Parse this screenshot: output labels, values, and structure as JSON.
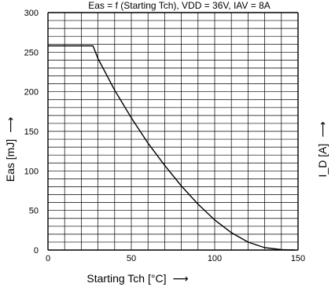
{
  "chart_data": {
    "type": "line",
    "title": "Eas = f (Starting Tch), VDD = 36V, IAV = 8A",
    "xlabel": "Starting Tch [°C]",
    "ylabel": "Eas [mJ]",
    "y2label": "I_D [A]",
    "arrow_glyph": "⟶",
    "xlim": [
      0,
      150
    ],
    "ylim": [
      0,
      300
    ],
    "x_ticks": [
      0,
      50,
      100,
      150
    ],
    "y_ticks": [
      0,
      50,
      100,
      150,
      200,
      250,
      300
    ],
    "grid": true,
    "line_color": "#000000",
    "series": [
      {
        "x": [
          0,
          27,
          30,
          40,
          50,
          60,
          70,
          80,
          90,
          100,
          110,
          120,
          130,
          140,
          148
        ],
        "y": [
          258,
          258,
          242,
          202,
          167,
          135,
          107,
          81,
          58,
          38,
          22,
          10,
          3,
          0.5,
          0
        ]
      }
    ]
  }
}
